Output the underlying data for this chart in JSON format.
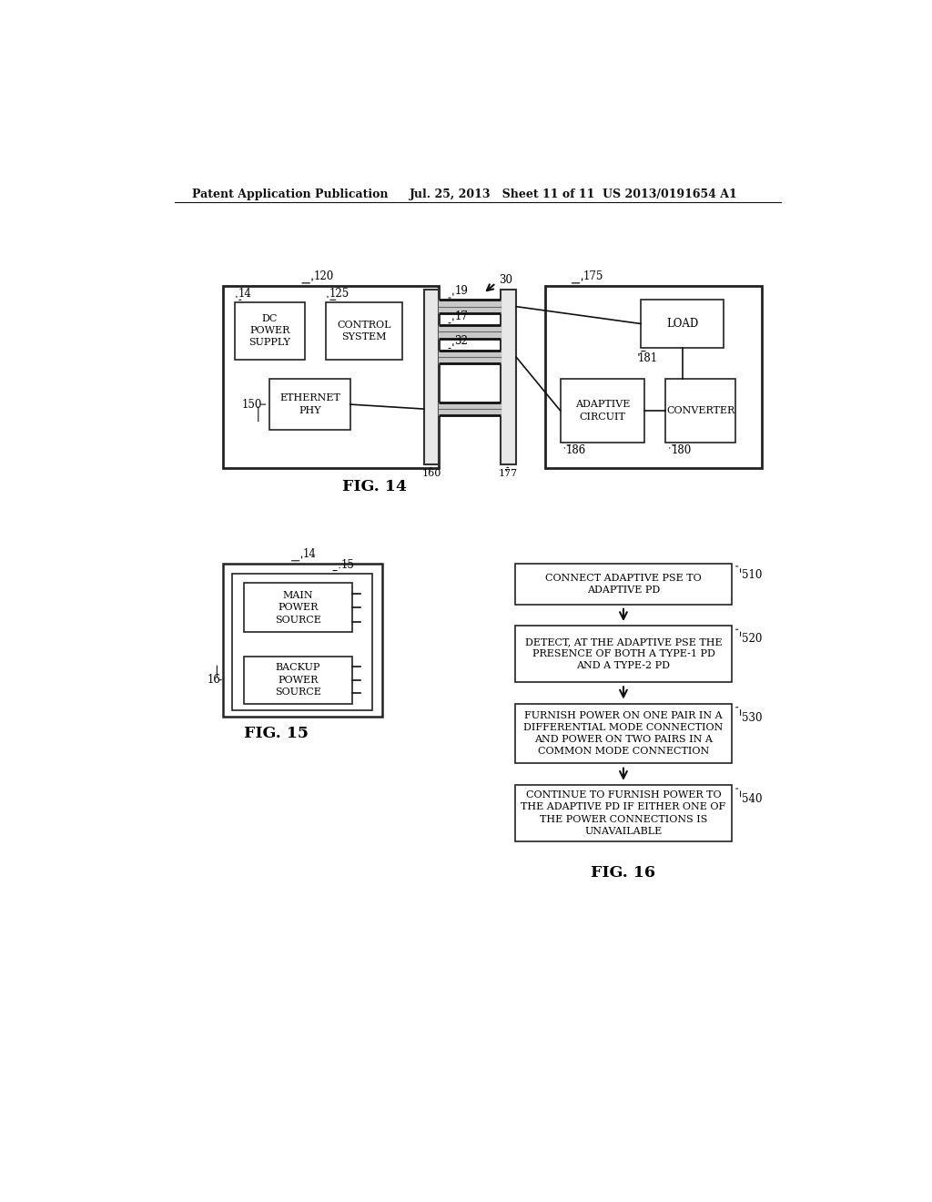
{
  "bg_color": "#ffffff",
  "header_left": "Patent Application Publication",
  "header_mid": "Jul. 25, 2013   Sheet 11 of 11",
  "header_right": "US 2013/0191654 A1",
  "fig14_label": "FIG. 14",
  "fig15_label": "FIG. 15",
  "fig16_label": "FIG. 16"
}
